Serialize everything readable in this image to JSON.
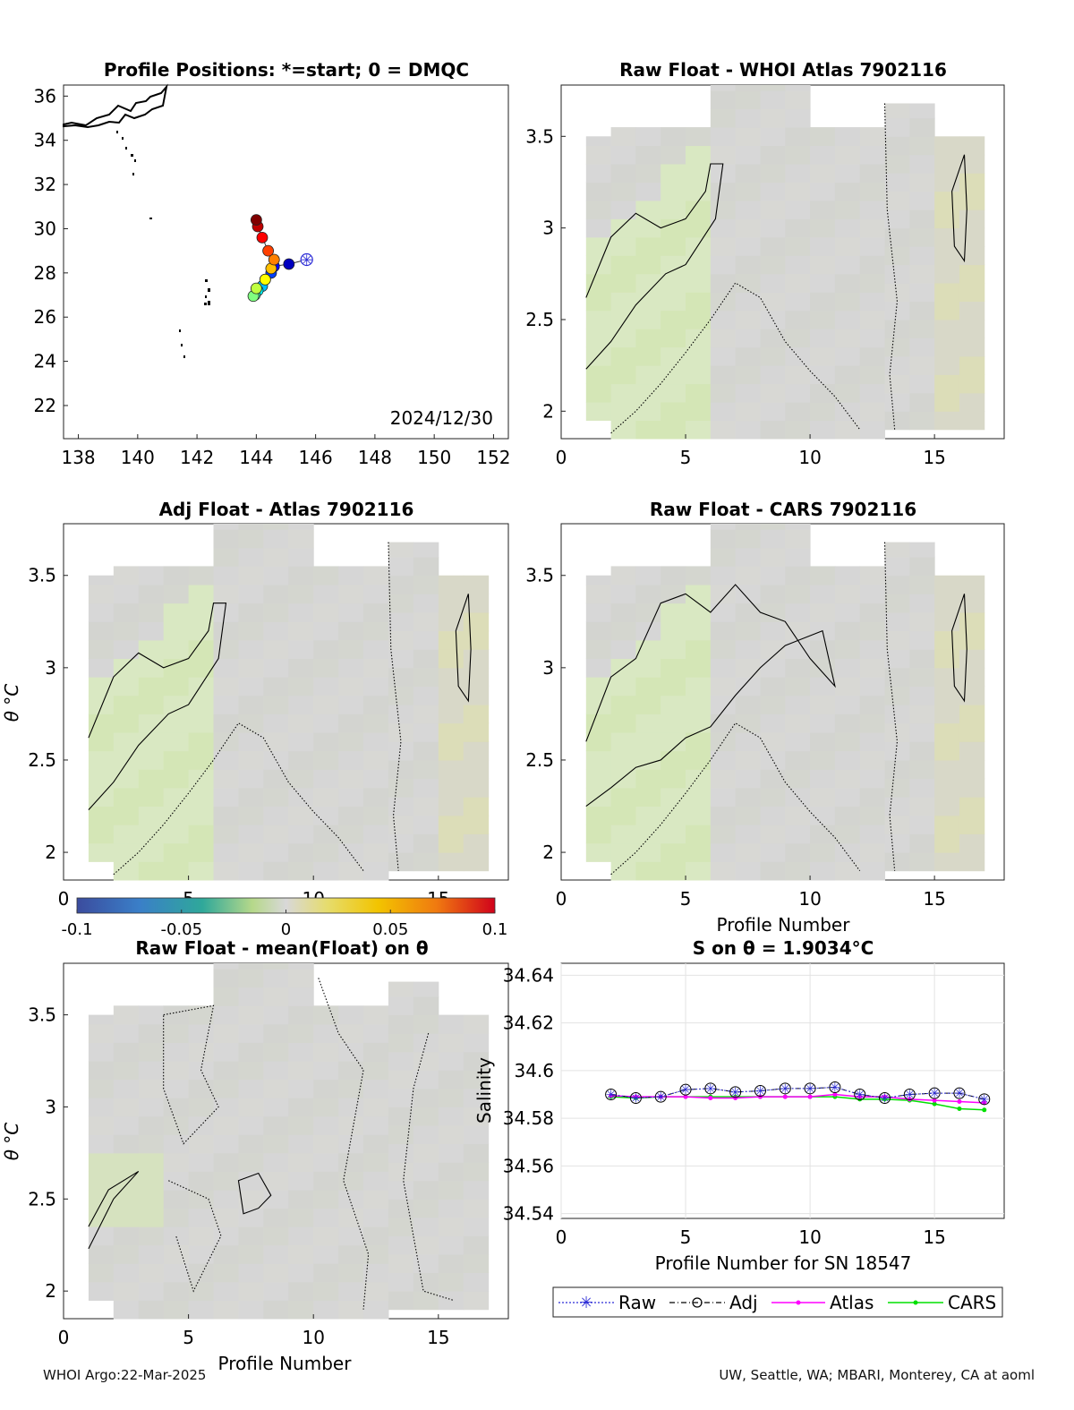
{
  "panels": {
    "map": {
      "title": "Profile Positions: *=start; 0 = DMQC",
      "date_label": "2024/12/30",
      "x_ticks": [
        "138",
        "140",
        "142",
        "144",
        "146",
        "148",
        "150",
        "152"
      ],
      "y_ticks": [
        "22",
        "24",
        "26",
        "28",
        "30",
        "32",
        "34",
        "36"
      ]
    },
    "raw_whoi": {
      "title": "Raw Float - WHOI Atlas  7902116",
      "x_ticks": [
        "0",
        "5",
        "10",
        "15"
      ],
      "y_ticks": [
        "2",
        "2.5",
        "3",
        "3.5"
      ]
    },
    "adj_atlas": {
      "title": "Adj Float - Atlas  7902116",
      "ylabel": "θ °C",
      "x_ticks": [
        "0",
        "5",
        "10",
        "15"
      ],
      "y_ticks": [
        "2",
        "2.5",
        "3",
        "3.5"
      ]
    },
    "raw_cars": {
      "title": "Raw Float - CARS  7902116",
      "xlabel": "Profile Number",
      "x_ticks": [
        "0",
        "5",
        "10",
        "15"
      ],
      "y_ticks": [
        "2",
        "2.5",
        "3",
        "3.5"
      ]
    },
    "colorbar": {
      "ticks": [
        "-0.1",
        "-0.05",
        "0",
        "0.05",
        "0.1"
      ]
    },
    "raw_mean": {
      "title": "Raw Float - mean(Float) on θ",
      "ylabel": "θ °C",
      "xlabel": "Profile Number",
      "x_ticks": [
        "0",
        "5",
        "10",
        "15"
      ],
      "y_ticks": [
        "2",
        "2.5",
        "3",
        "3.5"
      ]
    },
    "salinity": {
      "title": "S on θ = 1.9034°C",
      "ylabel": "Salinity",
      "xlabel": "Profile Number for SN 18547",
      "x_ticks": [
        "0",
        "5",
        "10",
        "15"
      ],
      "y_ticks": [
        "34.54",
        "34.56",
        "34.58",
        "34.6",
        "34.62",
        "34.64"
      ]
    }
  },
  "footer": {
    "left": "WHOI Argo:22-Mar-2025",
    "right": "UW, Seattle, WA; MBARI, Monterey, CA at aoml"
  },
  "colors": {
    "raw": "#2b2bd6",
    "adj": "#000000",
    "atlas": "#ff00ff",
    "cars": "#00e000",
    "field": "#d6d6d6",
    "greenish": "#d6e8b8"
  },
  "chart_data": [
    {
      "type": "scatter",
      "title": "Profile Positions: *=start; 0 = DMQC",
      "xlim": [
        137.5,
        152.5
      ],
      "ylim": [
        20.5,
        36.5
      ],
      "x": [
        145.7,
        145.1,
        144.6,
        144.5,
        144.3,
        144.2,
        144.05,
        143.95,
        143.9,
        144.0,
        144.3,
        144.5,
        144.6,
        144.4,
        144.2,
        144.05,
        144.0
      ],
      "y": [
        28.6,
        28.4,
        28.3,
        28.0,
        27.7,
        27.4,
        27.2,
        27.0,
        26.95,
        27.3,
        27.7,
        28.2,
        28.6,
        29.0,
        29.6,
        30.1,
        30.4
      ],
      "start": [
        145.7,
        28.6
      ]
    },
    {
      "type": "heatmap",
      "title": "Raw Float - WHOI Atlas  7902116",
      "xlim": [
        0,
        17.8
      ],
      "ylim": [
        1.85,
        3.78
      ]
    },
    {
      "type": "heatmap",
      "title": "Adj Float - Atlas  7902116",
      "xlim": [
        0,
        17.8
      ],
      "ylim": [
        1.85,
        3.78
      ]
    },
    {
      "type": "heatmap",
      "title": "Raw Float - CARS  7902116",
      "xlim": [
        0,
        17.8
      ],
      "ylim": [
        1.85,
        3.78
      ]
    },
    {
      "type": "heatmap",
      "title": "Raw Float - mean(Float) on θ",
      "xlim": [
        0,
        17.8
      ],
      "ylim": [
        1.85,
        3.78
      ]
    },
    {
      "type": "line",
      "title": "S on θ = 1.9034°C",
      "xlabel": "Profile Number for SN 18547",
      "ylabel": "Salinity",
      "xlim": [
        0,
        17.8
      ],
      "ylim": [
        34.538,
        34.645
      ],
      "x": [
        2,
        3,
        4,
        5,
        6,
        7,
        8,
        9,
        10,
        11,
        12,
        13,
        14,
        15,
        16,
        17
      ],
      "series": [
        {
          "name": "Raw",
          "values": [
            34.59,
            34.5885,
            34.589,
            34.592,
            34.5925,
            34.591,
            34.5915,
            34.5925,
            34.5925,
            34.593,
            34.59,
            34.5885,
            34.59,
            34.5905,
            34.5905,
            34.588
          ]
        },
        {
          "name": "Adj",
          "values": [
            34.59,
            34.5885,
            34.589,
            34.592,
            34.5925,
            34.591,
            34.5915,
            34.5925,
            34.5925,
            34.593,
            34.59,
            34.5885,
            34.59,
            34.5905,
            34.5905,
            34.588
          ]
        },
        {
          "name": "Atlas",
          "values": [
            34.5895,
            34.589,
            34.589,
            34.589,
            34.5885,
            34.5885,
            34.589,
            34.589,
            34.589,
            34.59,
            34.589,
            34.589,
            34.588,
            34.5875,
            34.587,
            34.5865
          ]
        },
        {
          "name": "CARS",
          "values": [
            34.589,
            34.5885,
            34.589,
            34.589,
            34.589,
            34.589,
            34.589,
            34.589,
            34.589,
            34.589,
            34.588,
            34.588,
            34.5875,
            34.586,
            34.584,
            34.5835
          ]
        }
      ],
      "legend": "bottom"
    }
  ]
}
